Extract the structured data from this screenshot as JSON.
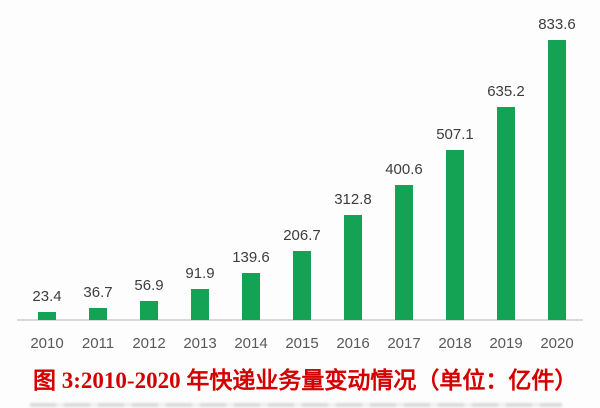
{
  "caption": "图 3:2010-2020 年快递业务量变动情况（单位：亿件）",
  "colors": {
    "bar": "#14a254",
    "value_label": "#3d3d3d",
    "axis_label": "#595959",
    "baseline": "#d9d9d9",
    "caption": "#d40000",
    "background": "#fdfdfd"
  },
  "chart_data": {
    "type": "bar",
    "categories": [
      "2010",
      "2011",
      "2012",
      "2013",
      "2014",
      "2015",
      "2016",
      "2017",
      "2018",
      "2019",
      "2020"
    ],
    "values": [
      23.4,
      36.7,
      56.9,
      91.9,
      139.6,
      206.7,
      312.8,
      400.6,
      507.1,
      635.2,
      833.6
    ],
    "value_labels": [
      "23.4",
      "36.7",
      "56.9",
      "91.9",
      "139.6",
      "206.7",
      "312.8",
      "400.6",
      "507.1",
      "635.2",
      "833.6"
    ],
    "title": "图 3:2010-2020 年快递业务量变动情况（单位：亿件）",
    "xlabel": "",
    "ylabel": "",
    "ylim": [
      0,
      900
    ],
    "unit": "亿件",
    "grid": false,
    "legend": "none",
    "data_labels": true,
    "bar_color": "#14a254"
  }
}
